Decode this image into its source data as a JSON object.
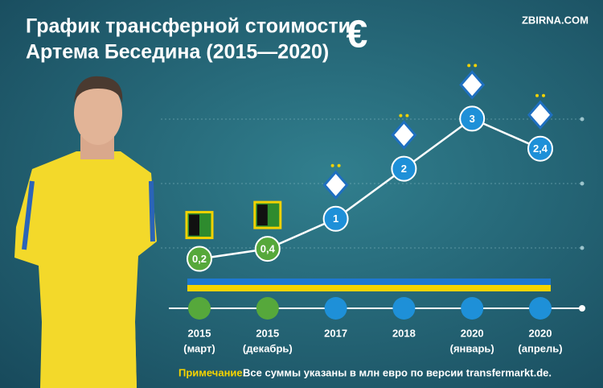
{
  "chart_data": {
    "type": "line",
    "title": [
      "График трансферной стоимости",
      "Артема Беседина (2015—2020)"
    ],
    "currency_symbol": "€",
    "source": "ZBIRNA.COM",
    "categories": [
      [
        "2015",
        "(март)"
      ],
      [
        "2015",
        "(декабрь)"
      ],
      [
        "2017"
      ],
      [
        "2018"
      ],
      [
        "2020",
        "(январь)"
      ],
      [
        "2020",
        "(апрель)"
      ]
    ],
    "values": [
      0.2,
      0.4,
      1,
      2,
      3,
      2.4
    ],
    "value_labels": [
      "0,2",
      "0,4",
      "1",
      "2",
      "3",
      "2,4"
    ],
    "point_colors": [
      "#56a83b",
      "#56a83b",
      "#1e90d8",
      "#1e90d8",
      "#1e90d8",
      "#1e90d8"
    ],
    "color": "#ffffff",
    "ylim": [
      0,
      3.4
    ],
    "note_label": "Примечание.",
    "note": "Все суммы указаны в млн евро по версии transfermarkt.de."
  }
}
